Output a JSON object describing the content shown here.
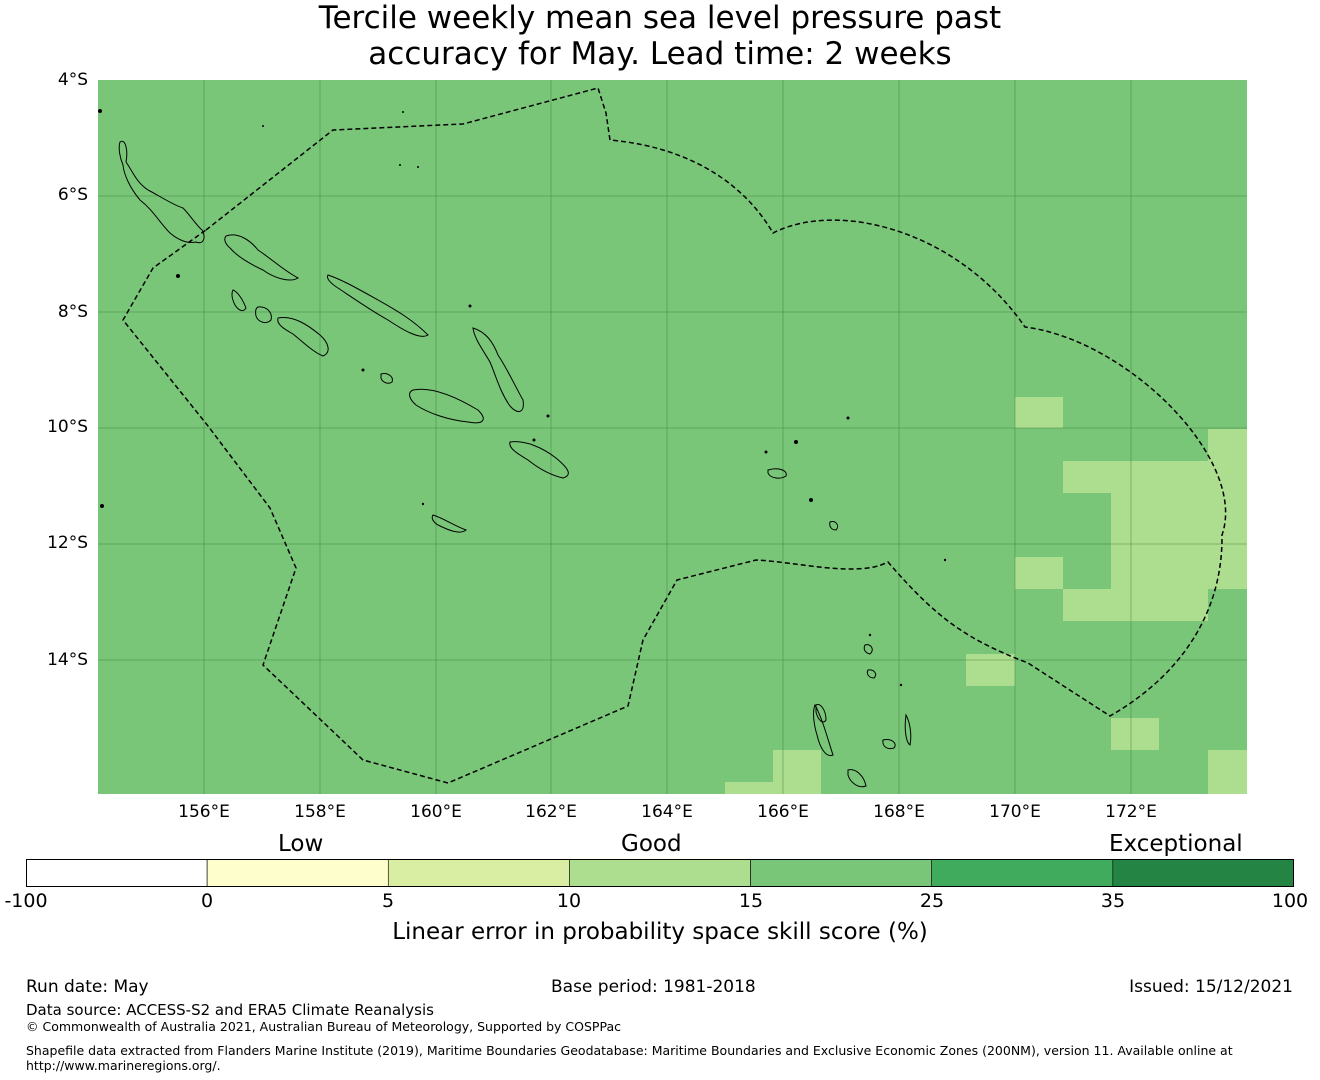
{
  "title_line1": "Tercile weekly mean sea level pressure past",
  "title_line2": "accuracy for May. Lead time: 2 weeks",
  "map": {
    "lon_range": [
      154.2,
      174.0
    ],
    "lat_range": [
      -16.3,
      -4.0
    ],
    "base_color": "#79c679",
    "lat_labels": [
      "4°S",
      "6°S",
      "8°S",
      "10°S",
      "12°S",
      "14°S"
    ],
    "lon_labels": [
      "156°E",
      "158°E",
      "160°E",
      "162°E",
      "164°E",
      "166°E",
      "168°E",
      "170°E",
      "172°E"
    ]
  },
  "category_labels": {
    "low": "Low",
    "good": "Good",
    "exceptional": "Exceptional"
  },
  "colorbar": {
    "colors": [
      "#ffffff",
      "#fefdcc",
      "#d9eea2",
      "#addd8e",
      "#79c679",
      "#41ab5d",
      "#238443"
    ],
    "tick_labels": [
      "-100",
      "0",
      "5",
      "10",
      "15",
      "25",
      "35",
      "100"
    ],
    "title": "Linear error in probability space skill score (%)"
  },
  "footer": {
    "run_date": "Run date: May",
    "base_period": "Base period: 1981-2018",
    "issued": "Issued: 15/12/2021",
    "data_source": "Data source: ACCESS-S2 and ERA5 Climate Reanalysis",
    "copyright": "© Commonwealth of Australia 2021, Australian Bureau of Meteorology, Supported by COSPPac",
    "shapefile_line1": "Shapefile data extracted from Flanders Marine Institute (2019), Maritime Boundaries Geodatabase: Maritime Boundaries and Exclusive Economic Zones (200NM), version 11. Available online at",
    "shapefile_line2": "http://www.marineregions.org/."
  }
}
